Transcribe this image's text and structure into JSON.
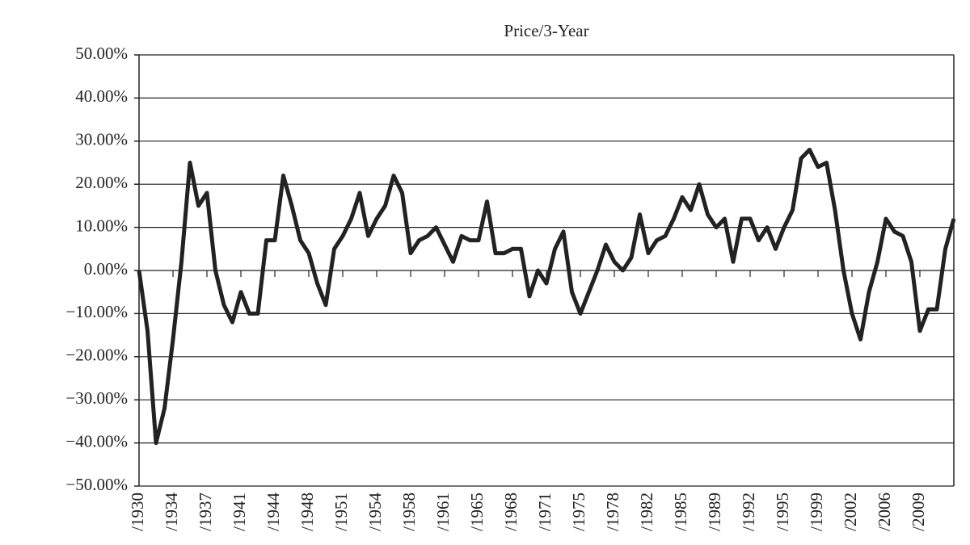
{
  "chart_data": {
    "type": "line",
    "title": "Price/3-Year",
    "categories": [
      "/1930",
      null,
      null,
      null,
      "/1934",
      null,
      null,
      null,
      "/1937",
      null,
      null,
      null,
      "/1941",
      null,
      null,
      null,
      "/1944",
      null,
      null,
      null,
      "/1948",
      null,
      null,
      null,
      "/1951",
      null,
      null,
      null,
      "/1954",
      null,
      null,
      null,
      "/1958",
      null,
      null,
      null,
      "/1961",
      null,
      null,
      null,
      "/1965",
      null,
      null,
      null,
      "/1968",
      null,
      null,
      null,
      "/1971",
      null,
      null,
      null,
      "/1975",
      null,
      null,
      null,
      "/1978",
      null,
      null,
      null,
      "/1982",
      null,
      null,
      null,
      "/1985",
      null,
      null,
      null,
      "/1989",
      null,
      null,
      null,
      "/1992",
      null,
      null,
      null,
      "/1995",
      null,
      null,
      null,
      "/1999",
      null,
      null,
      null,
      "/2002",
      null,
      null,
      null,
      "/2006",
      null,
      null,
      null,
      "/2009",
      null,
      null,
      null,
      null
    ],
    "series": [
      {
        "name": "Price/3-Year",
        "color": "#222222",
        "values": [
          0,
          -14,
          -40,
          -32,
          -16,
          2,
          25,
          15,
          18,
          0,
          -8,
          -12,
          -5,
          -10,
          -10,
          7,
          7,
          22,
          15,
          7,
          4,
          -3,
          -8,
          5,
          8,
          12,
          18,
          8,
          12,
          15,
          22,
          18,
          4,
          7,
          8,
          10,
          6,
          2,
          8,
          7,
          7,
          16,
          4,
          4,
          5,
          5,
          -6,
          0,
          -3,
          5,
          9,
          -5,
          -10,
          -5,
          0,
          6,
          2,
          0,
          3,
          13,
          4,
          7,
          8,
          12,
          17,
          14,
          20,
          13,
          10,
          12,
          2,
          12,
          12,
          7,
          10,
          5,
          10,
          14,
          26,
          28,
          24,
          25,
          14,
          0,
          -10,
          -16,
          -5,
          2,
          12,
          9,
          8,
          2,
          -14,
          -9,
          -9,
          5,
          12
        ]
      }
    ],
    "ylim": [
      -50,
      50
    ],
    "yticks": [
      {
        "value": -50,
        "label": "−50.00%"
      },
      {
        "value": -40,
        "label": "−40.00%"
      },
      {
        "value": -30,
        "label": "−30.00%"
      },
      {
        "value": -20,
        "label": "−20.00%"
      },
      {
        "value": -10,
        "label": "−10.00%"
      },
      {
        "value": 0,
        "label": "0.00%"
      },
      {
        "value": 10,
        "label": "10.00%"
      },
      {
        "value": 20,
        "label": "20.00%"
      },
      {
        "value": 30,
        "label": "30.00%"
      },
      {
        "value": 40,
        "label": "40.00%"
      },
      {
        "value": 50,
        "label": "50.00%"
      }
    ],
    "grid": true
  }
}
